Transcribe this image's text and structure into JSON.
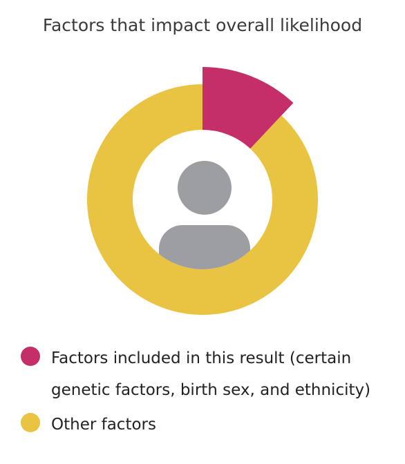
{
  "chart_data": {
    "type": "donut",
    "title": "Factors that impact overall likelihood",
    "categories": [
      "Factors included in this result (certain genetic factors, birth sex, and ethnicity)",
      "Other factors"
    ],
    "values": [
      12,
      88
    ],
    "colors": [
      "#c42e69",
      "#e9c342"
    ]
  }
}
